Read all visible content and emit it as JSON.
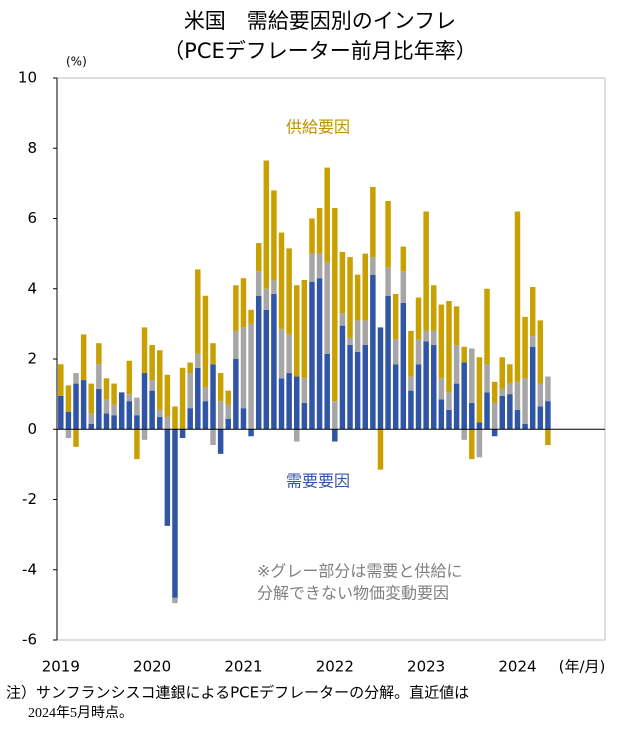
{
  "chart_data": {
    "type": "stacked_bar",
    "title": [
      "米国　需給要因別のインフレ",
      "（PCEデフレーター前月比年率）"
    ],
    "y_unit_label": "(%)",
    "x_axis_label": "(年/月)",
    "annotation": [
      "※グレー部分は需要と供給に",
      "分解できない物価変動要因"
    ],
    "footnote": [
      "注）サンフランシスコ連銀によるPCEデフレーターの分解。直近値は",
      "2024年5月時点。"
    ],
    "categories": [
      "2019",
      null,
      null,
      null,
      null,
      null,
      null,
      null,
      null,
      null,
      null,
      null,
      "2020",
      null,
      null,
      null,
      null,
      null,
      null,
      null,
      null,
      null,
      null,
      null,
      "2021",
      null,
      null,
      null,
      null,
      null,
      null,
      null,
      null,
      null,
      null,
      null,
      "2022",
      null,
      null,
      null,
      null,
      null,
      null,
      null,
      null,
      null,
      null,
      null,
      "2023",
      null,
      null,
      null,
      null,
      null,
      null,
      null,
      null,
      null,
      null,
      null,
      "2024",
      null,
      null,
      null,
      null
    ],
    "ylim": [
      -6,
      10
    ],
    "yticks": [
      10,
      8,
      6,
      4,
      2,
      0,
      -2,
      -4,
      -6
    ],
    "series": [
      {
        "name": "需要要因",
        "color": "#2f55a4",
        "values": [
          0.95,
          0.5,
          1.3,
          1.4,
          0.15,
          1.15,
          0.45,
          0.4,
          1.05,
          0.8,
          0.4,
          1.6,
          1.1,
          0.35,
          -2.75,
          -4.8,
          -0.25,
          0.6,
          1.75,
          0.8,
          1.85,
          -0.7,
          0.3,
          2.0,
          0.6,
          -0.2,
          3.8,
          3.4,
          3.85,
          1.45,
          1.6,
          1.5,
          0.75,
          4.2,
          4.3,
          2.15,
          -0.35,
          2.95,
          2.4,
          2.2,
          2.4,
          4.4,
          2.9,
          3.8,
          1.85,
          3.6,
          1.1,
          1.85,
          2.5,
          2.4,
          0.85,
          0.55,
          1.3,
          1.9,
          0.75,
          0.2,
          1.05,
          -0.2,
          0.95,
          1.0,
          0.55,
          0.15,
          2.35,
          0.65,
          0.8
        ]
      },
      {
        "color": "#a6a6a6",
        "values": [
          0,
          -0.25,
          0.3,
          0,
          0.3,
          0.7,
          0.4,
          0.3,
          0,
          0.2,
          0.5,
          -0.3,
          0.3,
          0.2,
          0.35,
          -0.15,
          0,
          1.0,
          0.4,
          0.4,
          -0.45,
          0.8,
          0.4,
          0.8,
          2.3,
          3.0,
          0.7,
          0.6,
          0.4,
          1.4,
          1.1,
          -0.35,
          0.7,
          0.8,
          0.7,
          2.6,
          0.8,
          0.35,
          0.2,
          0.9,
          0.7,
          0.5,
          0,
          0.8,
          0.7,
          0.9,
          0.4,
          0.7,
          0.3,
          0.4,
          0.6,
          0.5,
          1.1,
          -0.3,
          1.55,
          -0.8,
          0.8,
          0.75,
          0.2,
          0.3,
          0.8,
          1.3,
          0.3,
          0.65,
          0.7
        ]
      },
      {
        "name": "供給要因",
        "color": "#c8a000",
        "values": [
          0.9,
          0.75,
          -0.5,
          1.3,
          0.85,
          0.6,
          0.6,
          0.6,
          0,
          0.95,
          -0.85,
          1.3,
          1.0,
          1.7,
          1.2,
          0.65,
          1.75,
          0.3,
          2.4,
          2.6,
          0.6,
          0.8,
          0.4,
          1.3,
          1.4,
          0.4,
          0.8,
          3.65,
          2.55,
          2.75,
          2.45,
          2.6,
          2.8,
          1.0,
          1.3,
          2.7,
          5.5,
          1.75,
          2.3,
          1.3,
          1.9,
          2.0,
          -1.15,
          1.9,
          1.3,
          0.7,
          1.3,
          1.2,
          3.4,
          1.3,
          2.1,
          2.6,
          1.1,
          0.45,
          -0.85,
          1.85,
          2.15,
          0.6,
          0.9,
          0.55,
          4.85,
          1.75,
          1.4,
          1.8,
          -0.45
        ]
      }
    ]
  }
}
